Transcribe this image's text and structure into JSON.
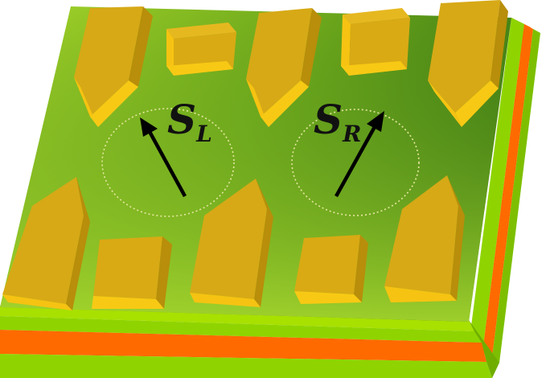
{
  "diagram": {
    "description_labels": {
      "left_spin": {
        "symbol": "S",
        "subscript": "L"
      },
      "right_spin": {
        "symbol": "S",
        "subscript": "R"
      }
    },
    "colors": {
      "substrate_top_light": "#9acd32",
      "substrate_top_dark": "#3f7d16",
      "layer_green": "#8fd400",
      "layer_orange": "#ff6a00",
      "gate_top": "#e0b21c",
      "gate_front": "#f6c312",
      "gate_side": "#b88e0a",
      "arrow": "#000000",
      "dot_circle": "#e6e6a0"
    },
    "components": [
      "substrate",
      "heterostructure-layers",
      "gate-electrodes",
      "quantum-dot-left",
      "quantum-dot-right",
      "spin-arrows"
    ]
  }
}
